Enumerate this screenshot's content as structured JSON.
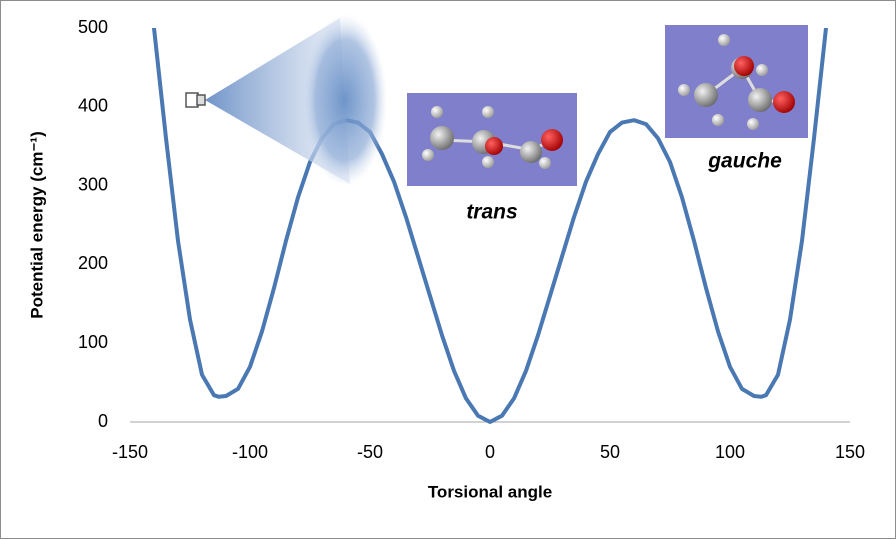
{
  "chart_data": {
    "type": "line",
    "x_label": "Torsional angle",
    "y_label": "Potential energy (cm⁻¹)",
    "annotations": [
      "trans",
      "gauche"
    ],
    "x": [
      -140,
      -135,
      -130,
      -125,
      -120,
      -115,
      -113,
      -110,
      -105,
      -100,
      -95,
      -90,
      -85,
      -80,
      -75,
      -70,
      -65,
      -60,
      -55,
      -50,
      -45,
      -40,
      -35,
      -30,
      -25,
      -20,
      -15,
      -10,
      -5,
      0,
      5,
      10,
      15,
      20,
      25,
      30,
      35,
      40,
      45,
      50,
      55,
      60,
      65,
      70,
      75,
      80,
      85,
      90,
      95,
      100,
      105,
      110,
      113,
      115,
      120,
      125,
      130,
      135,
      140
    ],
    "series": [
      {
        "name": "Potential energy",
        "color": "#4a78b3",
        "values": [
          500,
          360,
          230,
          130,
          60,
          34,
          32,
          33,
          42,
          70,
          115,
          170,
          230,
          285,
          330,
          360,
          378,
          383,
          380,
          368,
          340,
          305,
          260,
          210,
          160,
          110,
          65,
          30,
          8,
          0,
          8,
          30,
          65,
          110,
          160,
          210,
          260,
          305,
          340,
          368,
          380,
          383,
          378,
          360,
          330,
          285,
          230,
          170,
          115,
          70,
          42,
          33,
          32,
          34,
          60,
          130,
          230,
          360,
          500
        ]
      }
    ],
    "xlim": [
      -150,
      150
    ],
    "xticks": [
      -150,
      -100,
      -50,
      0,
      50,
      100,
      150
    ],
    "ylim": [
      0,
      500
    ],
    "yticks": [
      0,
      100,
      200,
      300,
      400,
      500
    ],
    "grid": false
  }
}
